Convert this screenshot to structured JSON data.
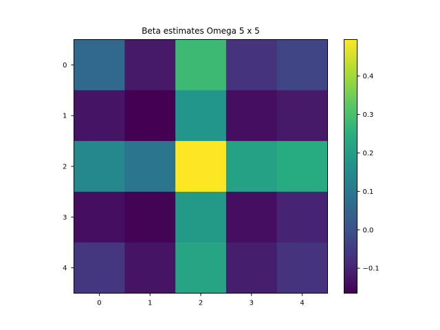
{
  "chart_data": {
    "type": "heatmap",
    "title": "Beta estimates Omega 5 x 5",
    "xlabel": "",
    "ylabel": "",
    "x_ticks": [
      "0",
      "1",
      "2",
      "3",
      "4"
    ],
    "y_ticks": [
      "0",
      "1",
      "2",
      "3",
      "4"
    ],
    "colormap": "viridis",
    "vmin": -0.165,
    "vmax": 0.495,
    "colorbar_ticks": [
      -0.1,
      0.0,
      0.1,
      0.2,
      0.3,
      0.4
    ],
    "colorbar_tick_labels": [
      "−0.1",
      "0.0",
      "0.1",
      "0.2",
      "0.3",
      "0.4"
    ],
    "values": [
      [
        0.06,
        -0.12,
        0.28,
        -0.07,
        -0.03
      ],
      [
        -0.13,
        -0.165,
        0.18,
        -0.14,
        -0.12
      ],
      [
        0.14,
        0.09,
        0.495,
        0.21,
        0.24
      ],
      [
        -0.14,
        -0.16,
        0.19,
        -0.14,
        -0.1
      ],
      [
        -0.06,
        -0.13,
        0.22,
        -0.11,
        -0.07
      ]
    ]
  }
}
